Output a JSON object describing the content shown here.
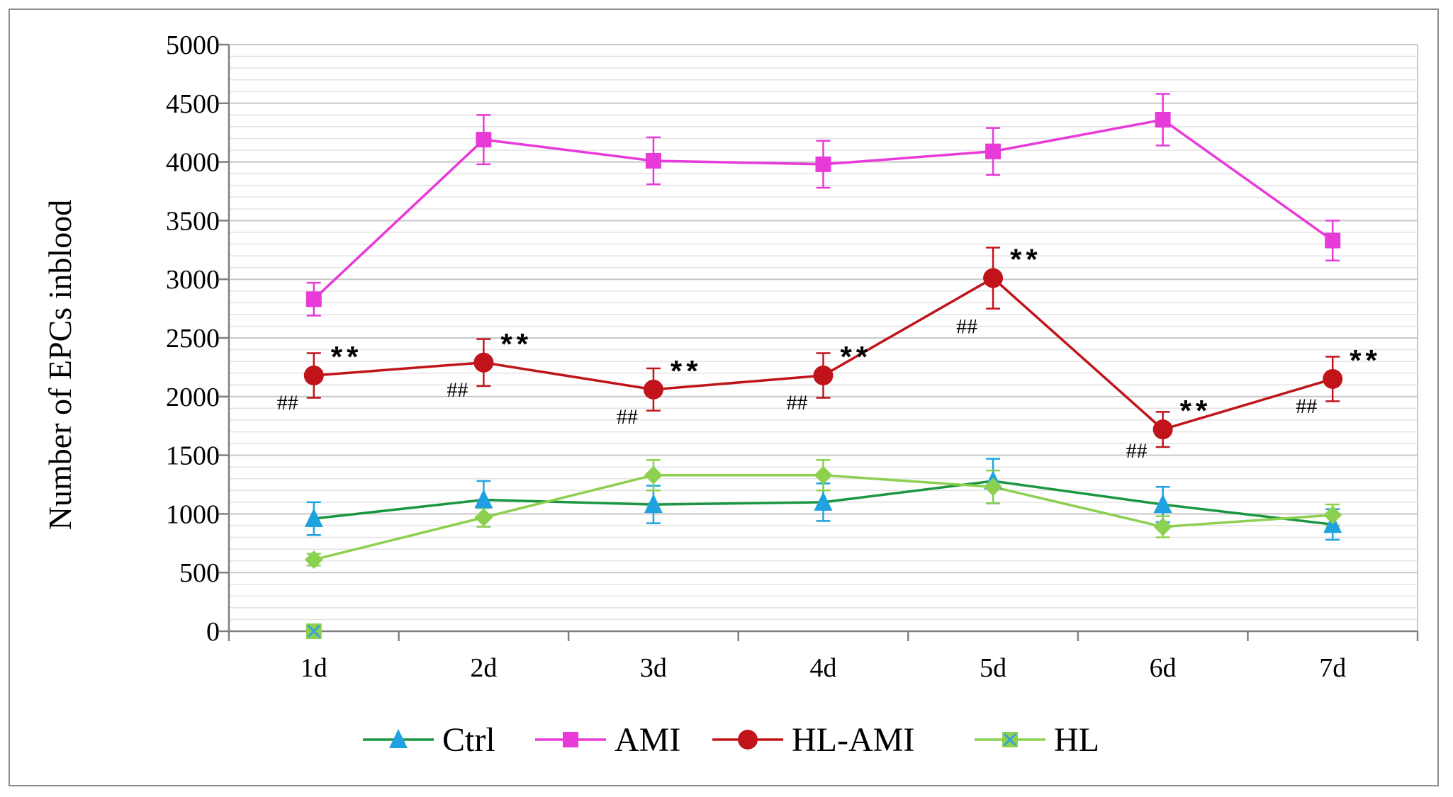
{
  "chart_data": {
    "type": "line",
    "title": "",
    "xlabel": "",
    "ylabel": "Number of EPCs inblood",
    "ylim": [
      0,
      5000
    ],
    "ytick_step": 500,
    "yticks": [
      "0",
      "500",
      "1000",
      "1500",
      "2000",
      "2500",
      "3000",
      "3500",
      "4000",
      "4500",
      "5000"
    ],
    "minor_grid_step": 100,
    "grid": true,
    "legend_position": "bottom",
    "categories": [
      "1d",
      "2d",
      "3d",
      "4d",
      "5d",
      "6d",
      "7d"
    ],
    "series": [
      {
        "name": "Ctrl",
        "color": "#1a9641",
        "marker": "triangle",
        "marker_color": "#1fa3e0",
        "values": [
          960,
          1120,
          1080,
          1100,
          1280,
          1080,
          910
        ],
        "errors": [
          140,
          160,
          160,
          160,
          190,
          150,
          130
        ]
      },
      {
        "name": "AMI",
        "color": "#e83ad8",
        "marker": "square",
        "marker_color": "#e83ad8",
        "values": [
          2830,
          4190,
          4010,
          3980,
          4090,
          4360,
          3330
        ],
        "errors": [
          140,
          210,
          200,
          200,
          200,
          220,
          170
        ]
      },
      {
        "name": "HL-AMI",
        "color": "#c0141a",
        "marker": "circle",
        "marker_color": "#c0141a",
        "values": [
          2180,
          2290,
          2060,
          2180,
          3010,
          1720,
          2150
        ],
        "errors": [
          190,
          200,
          180,
          190,
          260,
          150,
          190
        ]
      },
      {
        "name": "HL",
        "color": "#8cd050",
        "marker": "diamond",
        "marker_color": "#8cd050",
        "values": [
          610,
          970,
          1330,
          1330,
          1230,
          890,
          990
        ],
        "errors": [
          50,
          80,
          130,
          130,
          140,
          90,
          90
        ]
      },
      {
        "name": "",
        "color": "#8cd050",
        "marker": "x-square",
        "marker_color": "#8cd050",
        "values": [
          0,
          null,
          null,
          null,
          null,
          null,
          null
        ],
        "errors": [
          0,
          null,
          null,
          null,
          null,
          null,
          null
        ],
        "show_in_legend": false
      }
    ],
    "annotations": [
      {
        "text": "**",
        "category": "1d",
        "series": "HL-AMI"
      },
      {
        "text": "##",
        "category": "1d",
        "series": "HL-AMI"
      },
      {
        "text": "**",
        "category": "2d",
        "series": "HL-AMI"
      },
      {
        "text": "##",
        "category": "2d",
        "series": "HL-AMI"
      },
      {
        "text": "**",
        "category": "3d",
        "series": "HL-AMI"
      },
      {
        "text": "##",
        "category": "3d",
        "series": "HL-AMI"
      },
      {
        "text": "**",
        "category": "4d",
        "series": "HL-AMI"
      },
      {
        "text": "##",
        "category": "4d",
        "series": "HL-AMI"
      },
      {
        "text": "**",
        "category": "5d",
        "series": "HL-AMI"
      },
      {
        "text": "##",
        "category": "5d",
        "series": "HL-AMI"
      },
      {
        "text": "**",
        "category": "6d",
        "series": "HL-AMI"
      },
      {
        "text": "##",
        "category": "6d",
        "series": "HL-AMI"
      },
      {
        "text": "**",
        "category": "7d",
        "series": "HL-AMI"
      },
      {
        "text": "##",
        "category": "7d",
        "series": "HL-AMI"
      }
    ]
  }
}
